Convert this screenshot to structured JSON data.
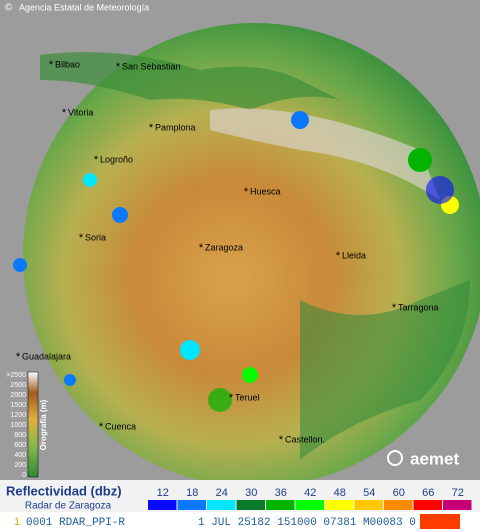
{
  "header": {
    "copyright": "©",
    "agency": "Agencia Estatal de Meteorología"
  },
  "cities": [
    "Bilbao",
    "San Sebastian",
    "Vitoria",
    "Pamplona",
    "Logroño",
    "Huesca",
    "Soria",
    "Zaragoza",
    "Lleida",
    "Tarragona",
    "Guadalajara",
    "Teruel",
    "Cuenca",
    "Castellon."
  ],
  "altitude": {
    "title": "Orografía (m)",
    "labels": [
      ">2500",
      "2500",
      "2000",
      "1500",
      "1200",
      "1000",
      "800",
      "600",
      "400",
      "200",
      "0"
    ]
  },
  "legend": {
    "title": "Reflectividad (dbz)",
    "subtitle": "Radar de Zaragoza",
    "levels": [
      {
        "value": 12,
        "color": "#0a0aff"
      },
      {
        "value": 18,
        "color": "#0a78ff"
      },
      {
        "value": 24,
        "color": "#00e6ff"
      },
      {
        "value": 30,
        "color": "#0a7a2a"
      },
      {
        "value": 36,
        "color": "#00b400"
      },
      {
        "value": 42,
        "color": "#00ff00"
      },
      {
        "value": 48,
        "color": "#ffff00"
      },
      {
        "value": 54,
        "color": "#ffc800"
      },
      {
        "value": 60,
        "color": "#ff8c00"
      },
      {
        "value": 66,
        "color": "#ff0000"
      },
      {
        "value": 72,
        "color": "#c80078"
      }
    ]
  },
  "logo": "aemet",
  "status": {
    "index": "1",
    "product": "0001 RDAR_PPI-R",
    "info": "1 JUL 25182 151000 07381 M00083 0"
  }
}
